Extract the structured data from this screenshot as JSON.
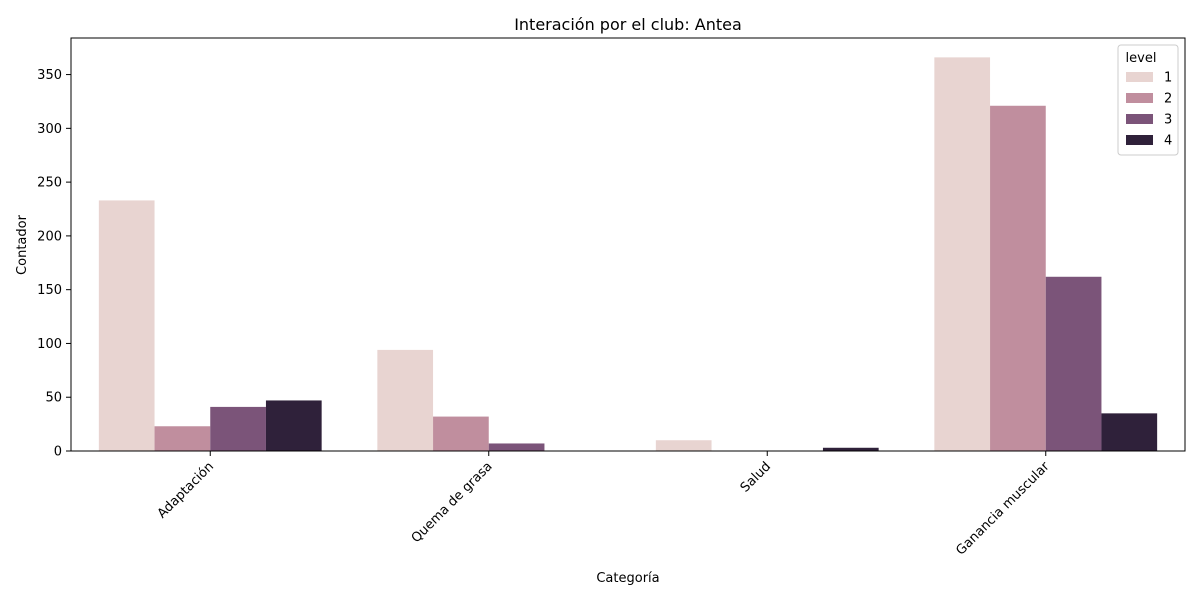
{
  "chart_data": {
    "type": "bar",
    "title": "Interación por el club: Antea",
    "xlabel": "Categoría",
    "ylabel": "Contador",
    "categories": [
      "Adaptación",
      "Quema de grasa",
      "Salud",
      "Ganancia muscular"
    ],
    "series": [
      {
        "name": "1",
        "color": "#e8d4d1",
        "values": [
          233,
          94,
          10,
          366
        ]
      },
      {
        "name": "2",
        "color": "#c08e9e",
        "values": [
          23,
          32,
          0,
          321
        ]
      },
      {
        "name": "3",
        "color": "#7b5479",
        "values": [
          41,
          7,
          0,
          162
        ]
      },
      {
        "name": "4",
        "color": "#2f213a",
        "values": [
          47,
          0,
          3,
          35
        ]
      }
    ],
    "yticks": [
      0,
      50,
      100,
      150,
      200,
      250,
      300,
      350
    ],
    "ylim": [
      0,
      384
    ],
    "legend": {
      "title": "level",
      "position": "top-right"
    },
    "grid": false
  }
}
